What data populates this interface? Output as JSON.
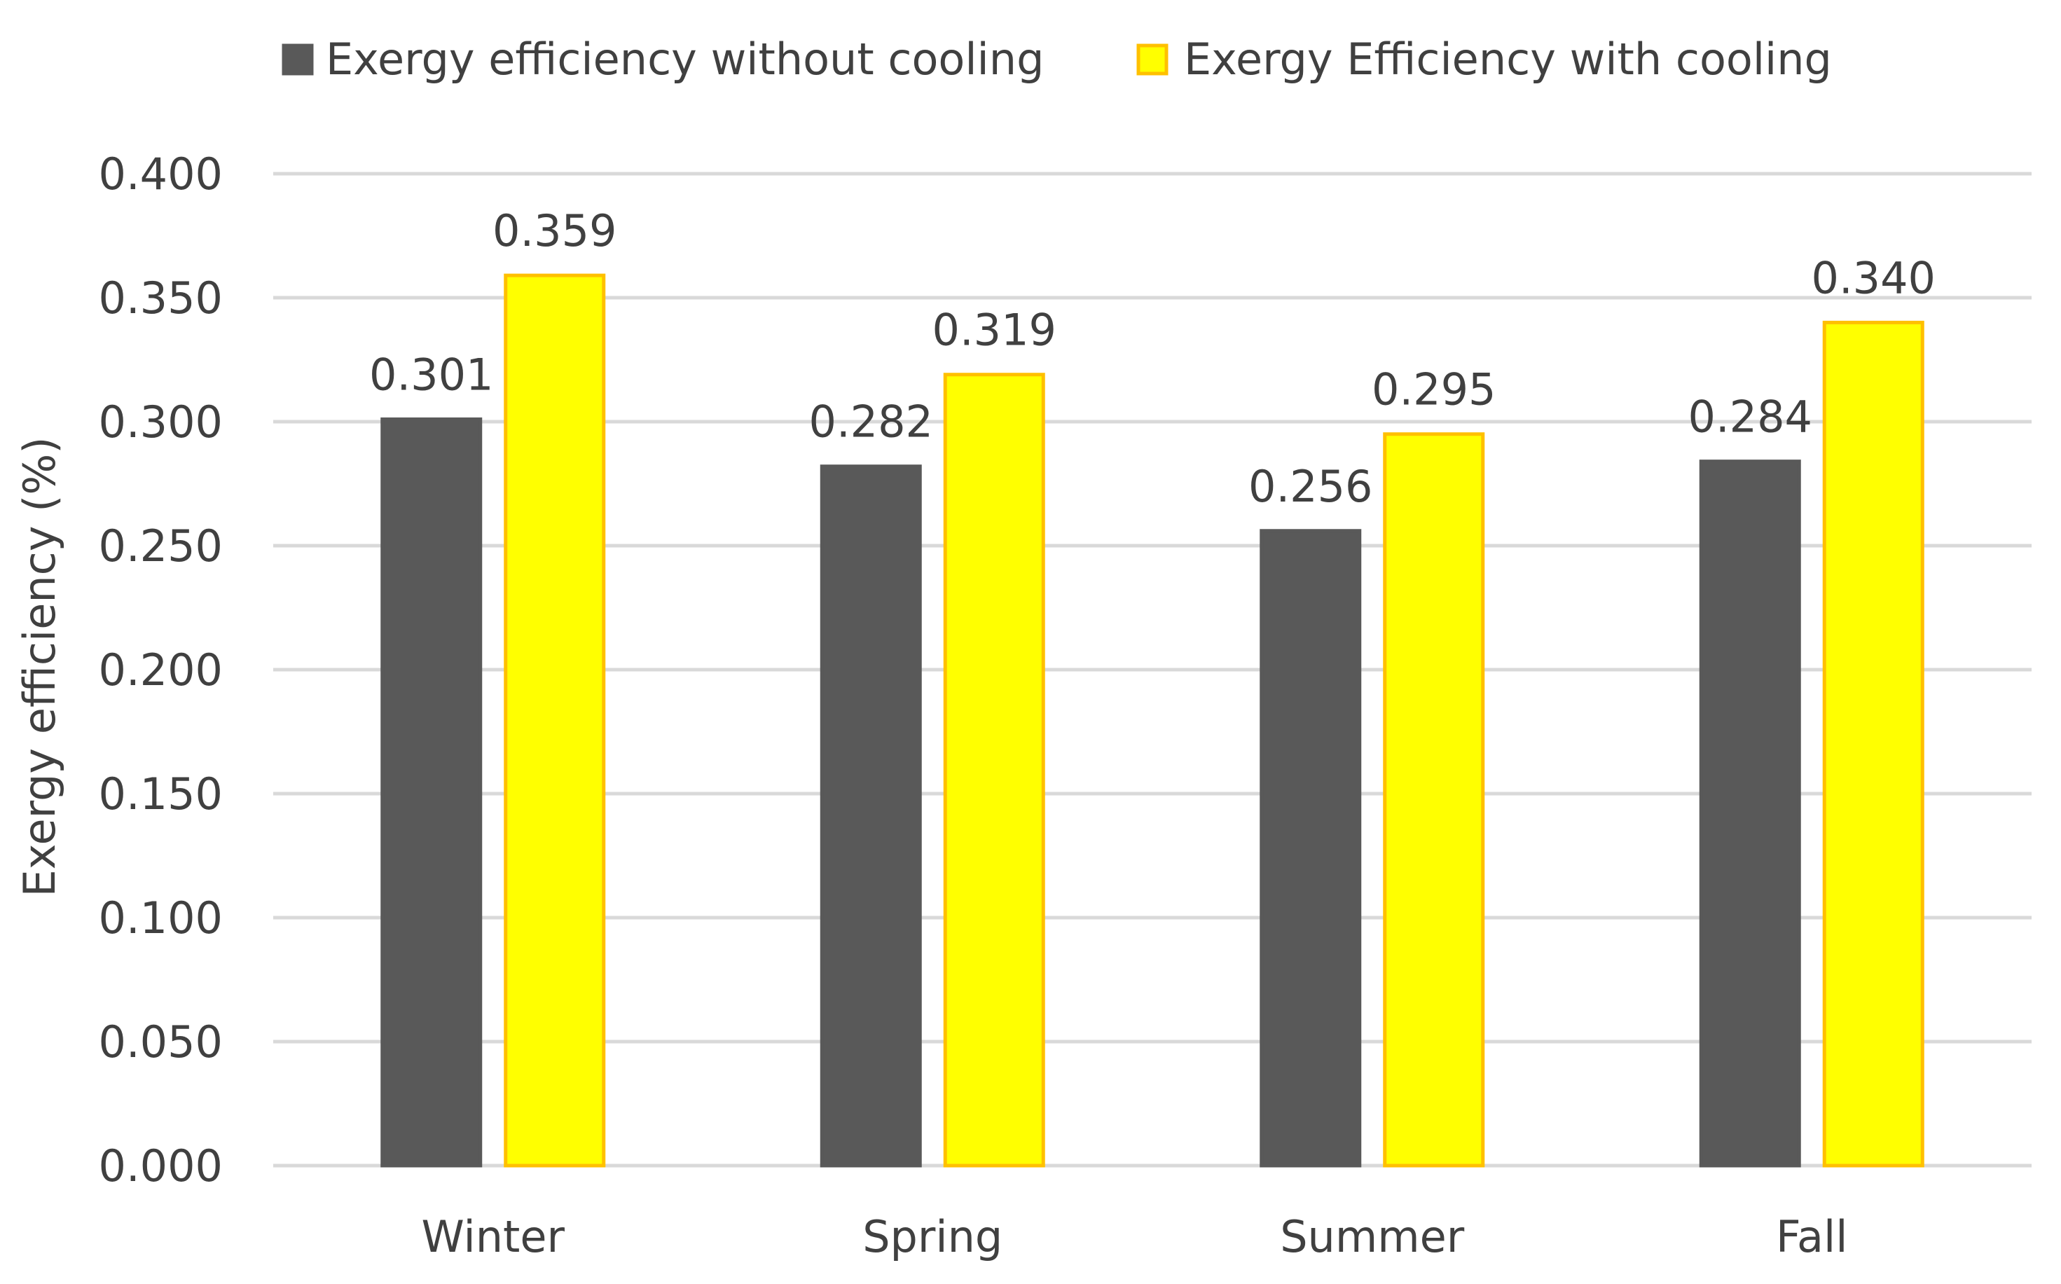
{
  "chart_data": {
    "type": "bar",
    "title": "",
    "xlabel": "",
    "ylabel": "Exergy efficiency (%)",
    "categories": [
      "Winter",
      "Spring",
      "Summer",
      "Fall"
    ],
    "series": [
      {
        "name": "Exergy efficiency without cooling",
        "values": [
          0.301,
          0.282,
          0.256,
          0.284
        ],
        "labels": [
          "0.301",
          "0.282",
          "0.256",
          "0.284"
        ],
        "color": "#595959",
        "border_color": "#595959"
      },
      {
        "name": "Exergy Efficiency with cooling",
        "values": [
          0.359,
          0.319,
          0.295,
          0.34
        ],
        "labels": [
          "0.359",
          "0.319",
          "0.295",
          "0.340"
        ],
        "color": "#FFFF00",
        "border_color": "#FFC000"
      }
    ],
    "ylim": [
      0,
      0.4
    ],
    "yticks": [
      0.0,
      0.05,
      0.1,
      0.15,
      0.2,
      0.25,
      0.3,
      0.35,
      0.4
    ],
    "ytick_labels": [
      "0.000",
      "0.050",
      "0.100",
      "0.150",
      "0.200",
      "0.250",
      "0.300",
      "0.350",
      "0.400"
    ],
    "grid": true,
    "grid_color": "#D9D9D9",
    "text_color": "#404040",
    "legend_position": "top-center"
  }
}
